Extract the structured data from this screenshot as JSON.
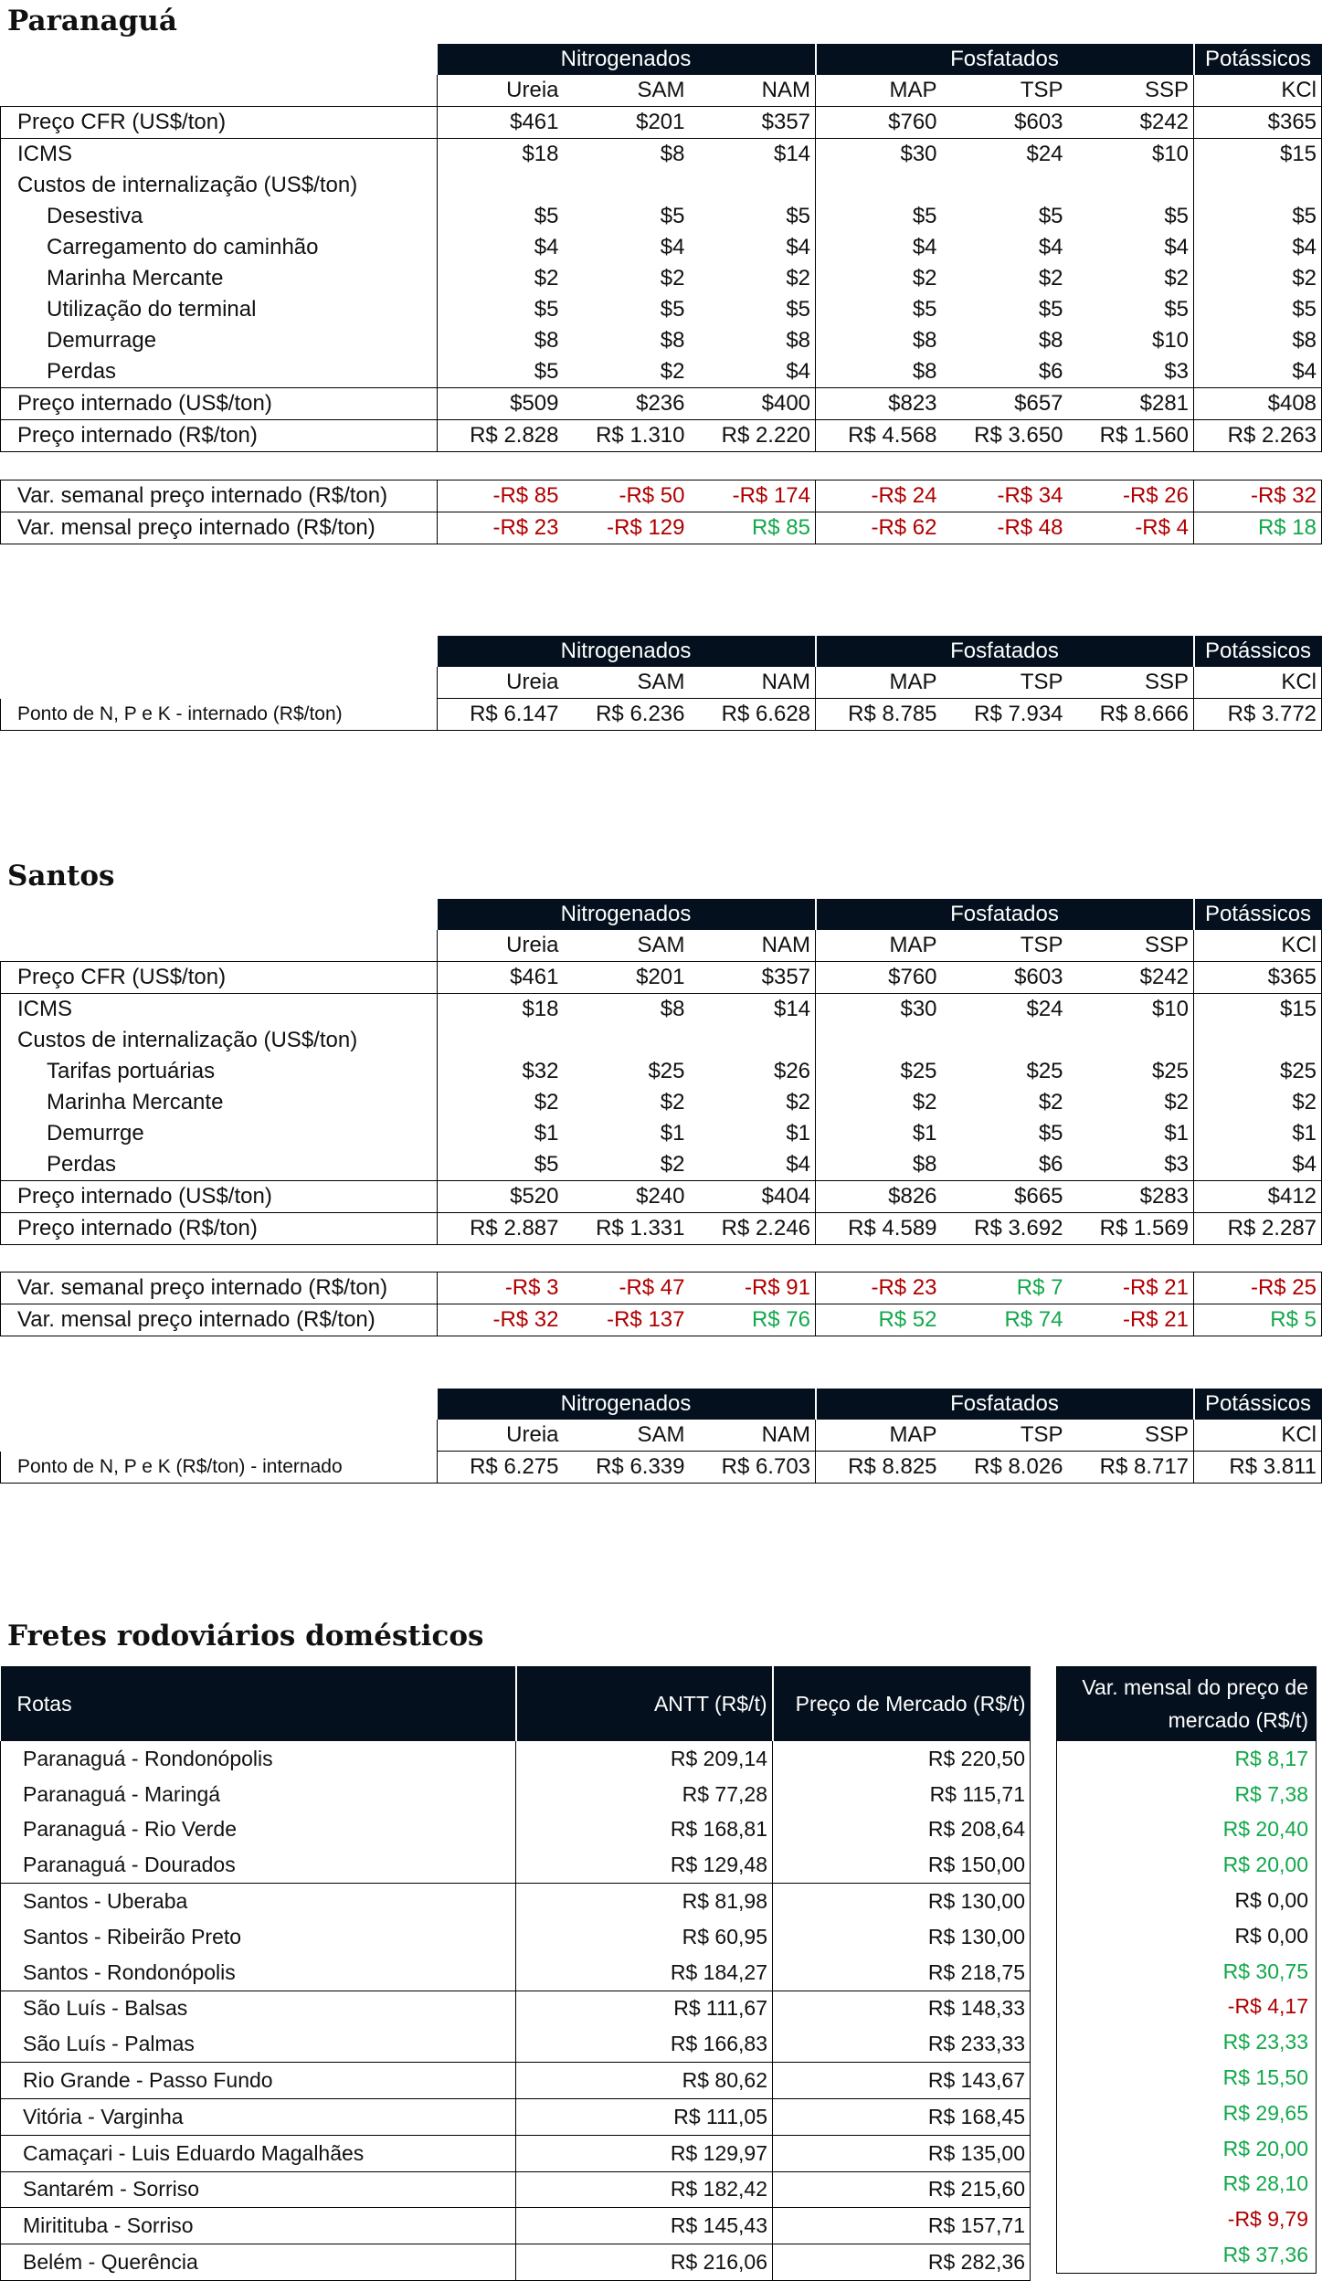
{
  "paranagua": {
    "title": "Paranaguá",
    "groups": [
      "Nitrogenados",
      "Fosfatados",
      "Potássicos"
    ],
    "products": [
      "Ureia",
      "SAM",
      "NAM",
      "MAP",
      "TSP",
      "SSP",
      "KCl"
    ],
    "rows": [
      {
        "label": "Preço CFR (US$/ton)",
        "values": [
          "$461",
          "$201",
          "$357",
          "$760",
          "$603",
          "$242",
          "$365"
        ]
      },
      {
        "label": "ICMS",
        "values": [
          "$18",
          "$8",
          "$14",
          "$30",
          "$24",
          "$10",
          "$15"
        ]
      },
      {
        "label": "Custos de internalização (US$/ton)",
        "values": [
          "",
          "",
          "",
          "",
          "",
          "",
          ""
        ]
      },
      {
        "label": "Desestiva",
        "values": [
          "$5",
          "$5",
          "$5",
          "$5",
          "$5",
          "$5",
          "$5"
        ]
      },
      {
        "label": "Carregamento do caminhão",
        "values": [
          "$4",
          "$4",
          "$4",
          "$4",
          "$4",
          "$4",
          "$4"
        ]
      },
      {
        "label": "Marinha Mercante",
        "values": [
          "$2",
          "$2",
          "$2",
          "$2",
          "$2",
          "$2",
          "$2"
        ]
      },
      {
        "label": "Utilização do terminal",
        "values": [
          "$5",
          "$5",
          "$5",
          "$5",
          "$5",
          "$5",
          "$5"
        ]
      },
      {
        "label": "Demurrage",
        "values": [
          "$8",
          "$8",
          "$8",
          "$8",
          "$8",
          "$10",
          "$8"
        ]
      },
      {
        "label": "Perdas",
        "values": [
          "$5",
          "$2",
          "$4",
          "$8",
          "$6",
          "$3",
          "$4"
        ]
      },
      {
        "label": "Preço internado (US$/ton)",
        "values": [
          "$509",
          "$236",
          "$400",
          "$823",
          "$657",
          "$281",
          "$408"
        ]
      },
      {
        "label": "Preço internado (R$/ton)",
        "values": [
          "R$ 2.828",
          "R$ 1.310",
          "R$ 2.220",
          "R$ 4.568",
          "R$ 3.650",
          "R$ 1.560",
          "R$ 2.263"
        ]
      }
    ],
    "var_rows": [
      {
        "label": "Var. semanal preço internado (R$/ton)",
        "values": [
          "-R$ 85",
          "-R$ 50",
          "-R$ 174",
          "-R$ 24",
          "-R$ 34",
          "-R$ 26",
          "-R$ 32"
        ]
      },
      {
        "label": "Var. mensal preço internado (R$/ton)",
        "values": [
          "-R$ 23",
          "-R$ 129",
          "R$ 85",
          "-R$ 62",
          "-R$ 48",
          "-R$ 4",
          "R$ 18"
        ]
      }
    ],
    "npk": {
      "label": "Ponto de N, P e K - internado (R$/ton)",
      "values": [
        "R$ 6.147",
        "R$ 6.236",
        "R$ 6.628",
        "R$ 8.785",
        "R$ 7.934",
        "R$ 8.666",
        "R$ 3.772"
      ]
    }
  },
  "santos": {
    "title": "Santos",
    "groups": [
      "Nitrogenados",
      "Fosfatados",
      "Potássicos"
    ],
    "products": [
      "Ureia",
      "SAM",
      "NAM",
      "MAP",
      "TSP",
      "SSP",
      "KCl"
    ],
    "rows": [
      {
        "label": "Preço CFR (US$/ton)",
        "values": [
          "$461",
          "$201",
          "$357",
          "$760",
          "$603",
          "$242",
          "$365"
        ]
      },
      {
        "label": "ICMS",
        "values": [
          "$18",
          "$8",
          "$14",
          "$30",
          "$24",
          "$10",
          "$15"
        ]
      },
      {
        "label": "Custos de internalização (US$/ton)",
        "values": [
          "",
          "",
          "",
          "",
          "",
          "",
          ""
        ]
      },
      {
        "label": "Tarifas portuárias",
        "values": [
          "$32",
          "$25",
          "$26",
          "$25",
          "$25",
          "$25",
          "$25"
        ]
      },
      {
        "label": "Marinha Mercante",
        "values": [
          "$2",
          "$2",
          "$2",
          "$2",
          "$2",
          "$2",
          "$2"
        ]
      },
      {
        "label": "Demurrge",
        "values": [
          "$1",
          "$1",
          "$1",
          "$1",
          "$5",
          "$1",
          "$1"
        ]
      },
      {
        "label": "Perdas",
        "values": [
          "$5",
          "$2",
          "$4",
          "$8",
          "$6",
          "$3",
          "$4"
        ]
      },
      {
        "label": "Preço internado (US$/ton)",
        "values": [
          "$520",
          "$240",
          "$404",
          "$826",
          "$665",
          "$283",
          "$412"
        ]
      },
      {
        "label": "Preço internado (R$/ton)",
        "values": [
          "R$ 2.887",
          "R$ 1.331",
          "R$ 2.246",
          "R$ 4.589",
          "R$ 3.692",
          "R$ 1.569",
          "R$ 2.287"
        ]
      }
    ],
    "var_rows": [
      {
        "label": "Var. semanal preço internado (R$/ton)",
        "values": [
          "-R$ 3",
          "-R$ 47",
          "-R$ 91",
          "-R$ 23",
          "R$ 7",
          "-R$ 21",
          "-R$ 25"
        ]
      },
      {
        "label": "Var. mensal preço internado (R$/ton)",
        "values": [
          "-R$ 32",
          "-R$ 137",
          "R$ 76",
          "R$ 52",
          "R$ 74",
          "-R$ 21",
          "R$ 5"
        ]
      }
    ],
    "npk": {
      "label": "Ponto de N, P e K (R$/ton) - internado",
      "values": [
        "R$ 6.275",
        "R$ 6.339",
        "R$ 6.703",
        "R$ 8.825",
        "R$ 8.026",
        "R$ 8.717",
        "R$ 3.811"
      ]
    }
  },
  "fretes": {
    "title": "Fretes rodoviários domésticos",
    "headers": [
      "Rotas",
      "ANTT (R$/t)",
      "Preço de Mercado (R$/t)"
    ],
    "var_header": "Var. mensal do preço de mercado (R$/t)",
    "rows": [
      {
        "route": "Paranaguá - Rondonópolis",
        "antt": "R$ 209,14",
        "mercado": "R$ 220,50",
        "var": "R$ 8,17"
      },
      {
        "route": "Paranaguá - Maringá",
        "antt": "R$ 77,28",
        "mercado": "R$ 115,71",
        "var": "R$ 7,38"
      },
      {
        "route": "Paranaguá - Rio Verde",
        "antt": "R$ 168,81",
        "mercado": "R$ 208,64",
        "var": "R$ 20,40"
      },
      {
        "route": "Paranaguá - Dourados",
        "antt": "R$ 129,48",
        "mercado": "R$ 150,00",
        "var": "R$ 20,00"
      },
      {
        "route": "Santos - Uberaba",
        "antt": "R$ 81,98",
        "mercado": "R$ 130,00",
        "var": "R$ 0,00"
      },
      {
        "route": "Santos - Ribeirão Preto",
        "antt": "R$ 60,95",
        "mercado": "R$ 130,00",
        "var": "R$ 0,00"
      },
      {
        "route": "Santos - Rondonópolis",
        "antt": "R$ 184,27",
        "mercado": "R$ 218,75",
        "var": "R$ 30,75"
      },
      {
        "route": "São Luís - Balsas",
        "antt": "R$ 111,67",
        "mercado": "R$ 148,33",
        "var": "-R$ 4,17"
      },
      {
        "route": "São Luís - Palmas",
        "antt": "R$ 166,83",
        "mercado": "R$ 233,33",
        "var": "R$ 23,33"
      },
      {
        "route": "Rio Grande - Passo Fundo",
        "antt": "R$ 80,62",
        "mercado": "R$ 143,67",
        "var": "R$ 15,50"
      },
      {
        "route": "Vitória - Varginha",
        "antt": "R$ 111,05",
        "mercado": "R$ 168,45",
        "var": "R$ 29,65"
      },
      {
        "route": "Camaçari - Luis Eduardo Magalhães",
        "antt": "R$ 129,97",
        "mercado": "R$ 135,00",
        "var": "R$ 20,00"
      },
      {
        "route": "Santarém - Sorriso",
        "antt": "R$ 182,42",
        "mercado": "R$ 215,60",
        "var": "R$ 28,10"
      },
      {
        "route": "Miritituba - Sorriso",
        "antt": "R$ 145,43",
        "mercado": "R$ 157,71",
        "var": "-R$ 9,79"
      },
      {
        "route": "Belém - Querência",
        "antt": "R$ 216,06",
        "mercado": "R$ 282,36",
        "var": "R$ 37,36"
      }
    ]
  }
}
